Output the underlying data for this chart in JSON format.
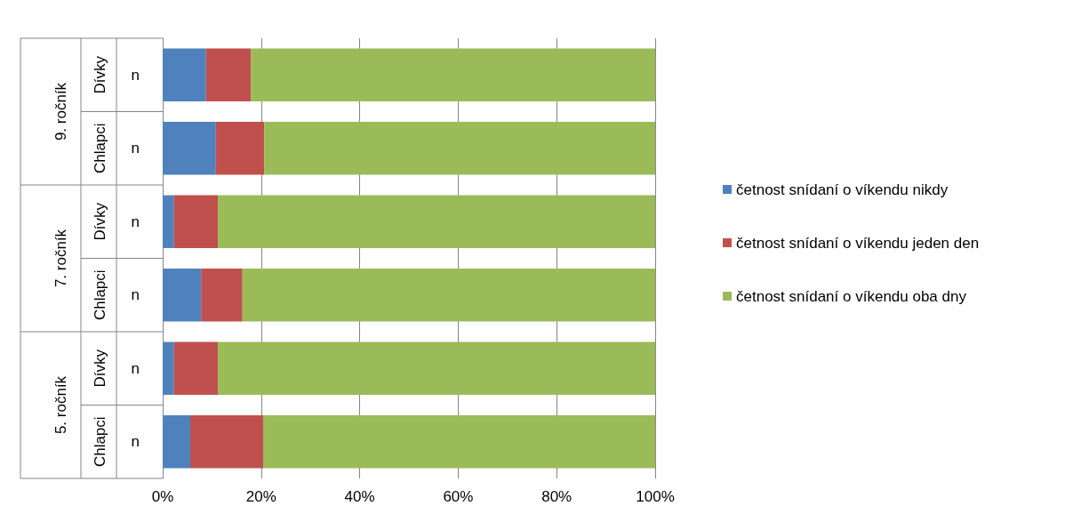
{
  "chart_data": {
    "type": "bar",
    "orientation": "horizontal",
    "stacked": true,
    "categories": [
      "n",
      "n",
      "n",
      "n",
      "n",
      "n"
    ],
    "series": [
      {
        "name": "četnost snídaní o víkendu nikdy",
        "color": "#4f81bd",
        "values": [
          8.8,
          10.8,
          2.3,
          7.8,
          2.3,
          5.6
        ]
      },
      {
        "name": "četnost snídaní o víkendu jeden den",
        "color": "#c0504d",
        "values": [
          9.1,
          9.8,
          8.9,
          8.4,
          8.9,
          14.8
        ]
      },
      {
        "name": "četnost snídaní o víkendu oba dny",
        "color": "#9bbb59",
        "values": [
          82.1,
          79.4,
          88.8,
          83.8,
          88.8,
          79.6
        ]
      }
    ],
    "annotations": [
      "Dívky",
      "Chlapci",
      "Dívky",
      "Chlapci",
      "Dívky",
      "Chlapci",
      "9. ročník",
      "7. ročník",
      "5. ročník"
    ],
    "xlim": [
      0,
      100
    ],
    "xticks": [
      {
        "value": 0,
        "label": "0%"
      },
      {
        "value": 20,
        "label": "20%"
      },
      {
        "value": 40,
        "label": "40%"
      },
      {
        "value": 60,
        "label": "60%"
      },
      {
        "value": 80,
        "label": "80%"
      },
      {
        "value": 100,
        "label": "100%"
      }
    ],
    "grid": "x",
    "legend": "right"
  }
}
